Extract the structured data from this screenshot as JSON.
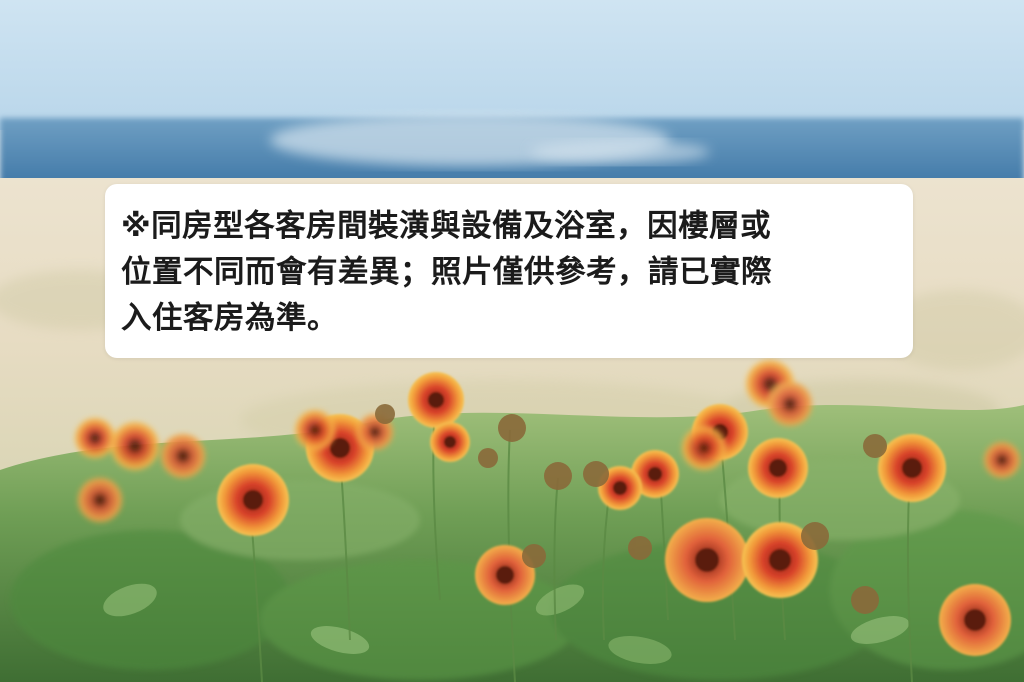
{
  "notice": {
    "lines": [
      "※同房型各客房間裝潢與設備及浴室，因樓層或",
      "位置不同而會有差異；照片僅供參考，請已實際",
      "入住客房為準。"
    ]
  }
}
